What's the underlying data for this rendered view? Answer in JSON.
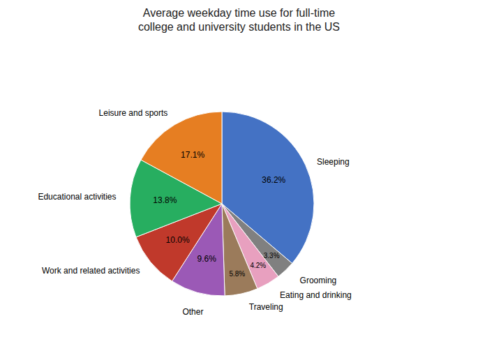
{
  "chart_data": {
    "type": "pie",
    "title": "Average weekday time use for full-time\ncollege and university students in the US",
    "categories": [
      "Sleeping",
      "Grooming",
      "Eating and drinking",
      "Traveling",
      "Other",
      "Work and related activities",
      "Educational activities",
      "Leisure and sports"
    ],
    "values": [
      36.2,
      3.3,
      4.2,
      5.8,
      9.6,
      10.0,
      13.8,
      17.1
    ],
    "value_labels": [
      "36.2%",
      "3.3%",
      "4.2%",
      "5.8%",
      "9.6%",
      "10.0%",
      "13.8%",
      "17.1%"
    ],
    "colors": [
      "#4472C4",
      "#808080",
      "#E8A0BF",
      "#9B7B5B",
      "#9B59B6",
      "#C0392B",
      "#27AE60",
      "#E67E22"
    ],
    "data_labels": true
  }
}
